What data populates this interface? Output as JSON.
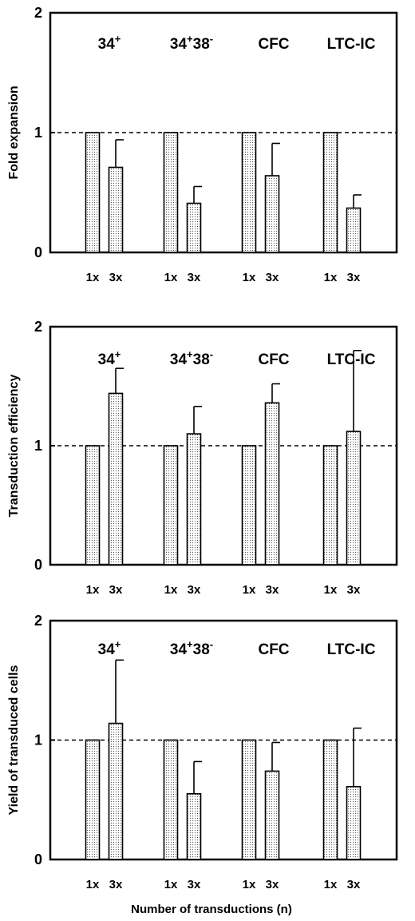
{
  "x_axis_label": "Number of transductions (n)",
  "colors": {
    "bar_fill_base": "#ffffff",
    "bar_dots": "#555555",
    "axis": "#000000",
    "reference_line": "#000000"
  },
  "chart_data": [
    {
      "type": "bar",
      "ylabel": "Fold expansion",
      "ylim": [
        0,
        2
      ],
      "yticks": [
        "0",
        "1",
        "2"
      ],
      "reference_line": 1,
      "groups": [
        {
          "label_main": "34",
          "label_sup": "+",
          "label_rest": "",
          "label_sup2": ""
        },
        {
          "label_main": "34",
          "label_sup": "+",
          "label_rest": "38",
          "label_sup2": "-"
        },
        {
          "label_main": "CFC",
          "label_sup": "",
          "label_rest": "",
          "label_sup2": ""
        },
        {
          "label_main": "LTC-IC",
          "label_sup": "",
          "label_rest": "",
          "label_sup2": ""
        }
      ],
      "categories": [
        "1x",
        "3x"
      ],
      "values": [
        [
          1.0,
          0.71
        ],
        [
          1.0,
          0.41
        ],
        [
          1.0,
          0.64
        ],
        [
          1.0,
          0.37
        ]
      ],
      "errors": [
        [
          0,
          0.23
        ],
        [
          0,
          0.14
        ],
        [
          0,
          0.27
        ],
        [
          0,
          0.11
        ]
      ]
    },
    {
      "type": "bar",
      "ylabel": "Transduction efficiency",
      "ylim": [
        0,
        2
      ],
      "yticks": [
        "0",
        "1",
        "2"
      ],
      "reference_line": 1,
      "groups": [
        {
          "label_main": "34",
          "label_sup": "+",
          "label_rest": "",
          "label_sup2": ""
        },
        {
          "label_main": "34",
          "label_sup": "+",
          "label_rest": "38",
          "label_sup2": "-"
        },
        {
          "label_main": "CFC",
          "label_sup": "",
          "label_rest": "",
          "label_sup2": ""
        },
        {
          "label_main": "LTC-IC",
          "label_sup": "",
          "label_rest": "",
          "label_sup2": ""
        }
      ],
      "categories": [
        "1x",
        "3x"
      ],
      "values": [
        [
          1.0,
          1.44
        ],
        [
          1.0,
          1.1
        ],
        [
          1.0,
          1.36
        ],
        [
          1.0,
          1.12
        ]
      ],
      "errors": [
        [
          0,
          0.21
        ],
        [
          0,
          0.23
        ],
        [
          0,
          0.16
        ],
        [
          0,
          0.68
        ]
      ]
    },
    {
      "type": "bar",
      "ylabel": "Yield of transduced cells",
      "ylim": [
        0,
        2
      ],
      "yticks": [
        "0",
        "1",
        "2"
      ],
      "reference_line": 1,
      "groups": [
        {
          "label_main": "34",
          "label_sup": "+",
          "label_rest": "",
          "label_sup2": ""
        },
        {
          "label_main": "34",
          "label_sup": "+",
          "label_rest": "38",
          "label_sup2": "-"
        },
        {
          "label_main": "CFC",
          "label_sup": "",
          "label_rest": "",
          "label_sup2": ""
        },
        {
          "label_main": "LTC-IC",
          "label_sup": "",
          "label_rest": "",
          "label_sup2": ""
        }
      ],
      "categories": [
        "1x",
        "3x"
      ],
      "values": [
        [
          1.0,
          1.14
        ],
        [
          1.0,
          0.55
        ],
        [
          1.0,
          0.74
        ],
        [
          1.0,
          0.61
        ]
      ],
      "errors": [
        [
          0,
          0.53
        ],
        [
          0,
          0.27
        ],
        [
          0,
          0.24
        ],
        [
          0,
          0.49
        ]
      ]
    }
  ]
}
